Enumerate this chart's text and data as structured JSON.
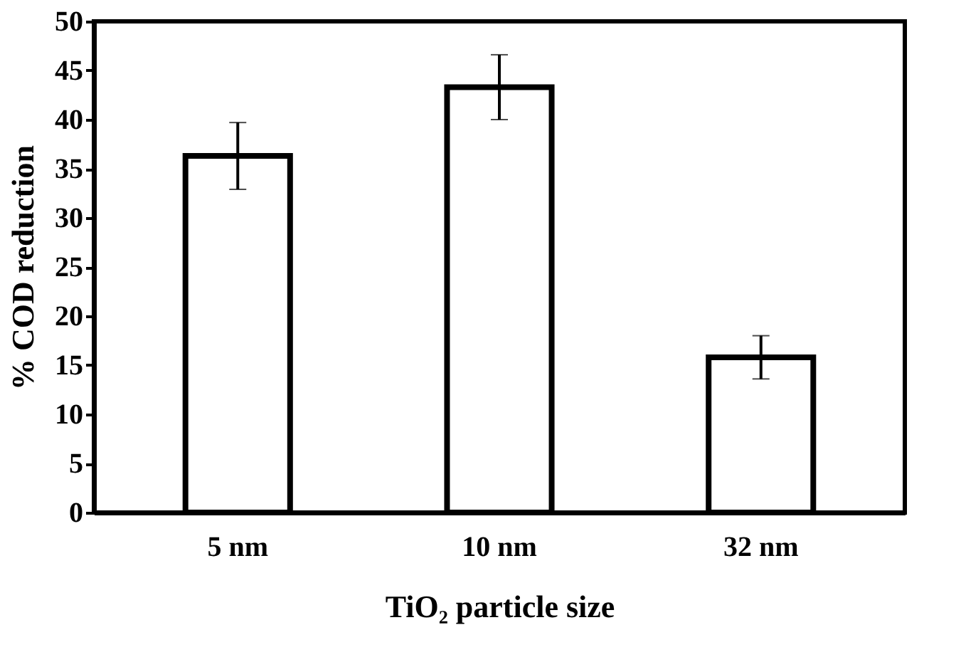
{
  "chart_data": {
    "type": "bar",
    "xlabel": "TiO₂ particle size",
    "ylabel": "% COD reduction",
    "categories": [
      "5 nm",
      "10 nm",
      "32 nm"
    ],
    "values": [
      36.3,
      43.3,
      15.8
    ],
    "errors": [
      3.4,
      3.3,
      2.2
    ],
    "color": "#ffffff",
    "ylim": [
      0,
      50
    ],
    "yticks": [
      0,
      5,
      10,
      15,
      20,
      25,
      30,
      35,
      40,
      45,
      50
    ],
    "grid": false
  }
}
